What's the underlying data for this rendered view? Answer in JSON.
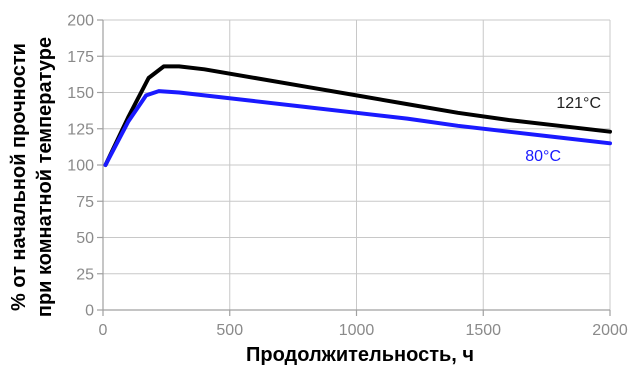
{
  "chart_data": {
    "type": "line",
    "xlabel": "Продолжительность, ч",
    "ylabel_lines": [
      "% от начальной прочности",
      "при комнатной температуре"
    ],
    "xlim": [
      0,
      2000
    ],
    "ylim": [
      0,
      200
    ],
    "xticks": [
      0,
      500,
      1000,
      1500,
      2000
    ],
    "yticks": [
      0,
      25,
      50,
      75,
      100,
      125,
      150,
      175,
      200
    ],
    "grid": true,
    "series": [
      {
        "name": "121°C",
        "color": "#000000",
        "x": [
          10,
          100,
          180,
          240,
          300,
          400,
          600,
          800,
          1000,
          1200,
          1400,
          1600,
          1800,
          2000
        ],
        "y": [
          100,
          133,
          160,
          168,
          168,
          166,
          160,
          154,
          148,
          142,
          136,
          131,
          127,
          123
        ]
      },
      {
        "name": "80°C",
        "color": "#1a1aff",
        "x": [
          10,
          100,
          170,
          220,
          300,
          400,
          600,
          800,
          1000,
          1200,
          1400,
          1600,
          1800,
          2000
        ],
        "y": [
          100,
          130,
          148,
          151,
          150,
          148,
          144,
          140,
          136,
          132,
          127,
          123,
          119,
          115
        ]
      }
    ]
  }
}
